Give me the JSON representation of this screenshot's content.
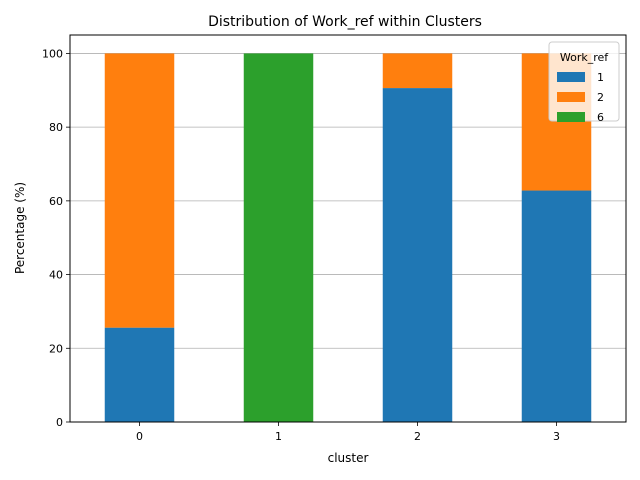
{
  "chart_data": {
    "type": "bar",
    "stacked": true,
    "title": "Distribution of Work_ref within Clusters",
    "xlabel": "cluster",
    "ylabel": "Percentage (%)",
    "categories": [
      "0",
      "1",
      "2",
      "3"
    ],
    "ylim": [
      0,
      105
    ],
    "yticks": [
      0,
      20,
      40,
      60,
      80,
      100
    ],
    "grid": "horizontal",
    "legend": {
      "title": "Work_ref",
      "placement": "top-right"
    },
    "series": [
      {
        "name": "1",
        "color": "#1f77b4",
        "values": [
          25.6,
          0,
          90.6,
          62.8
        ]
      },
      {
        "name": "2",
        "color": "#ff7f0e",
        "values": [
          74.4,
          0,
          9.4,
          37.2
        ]
      },
      {
        "name": "6",
        "color": "#2ca02c",
        "values": [
          0,
          100,
          0,
          0
        ]
      }
    ]
  }
}
